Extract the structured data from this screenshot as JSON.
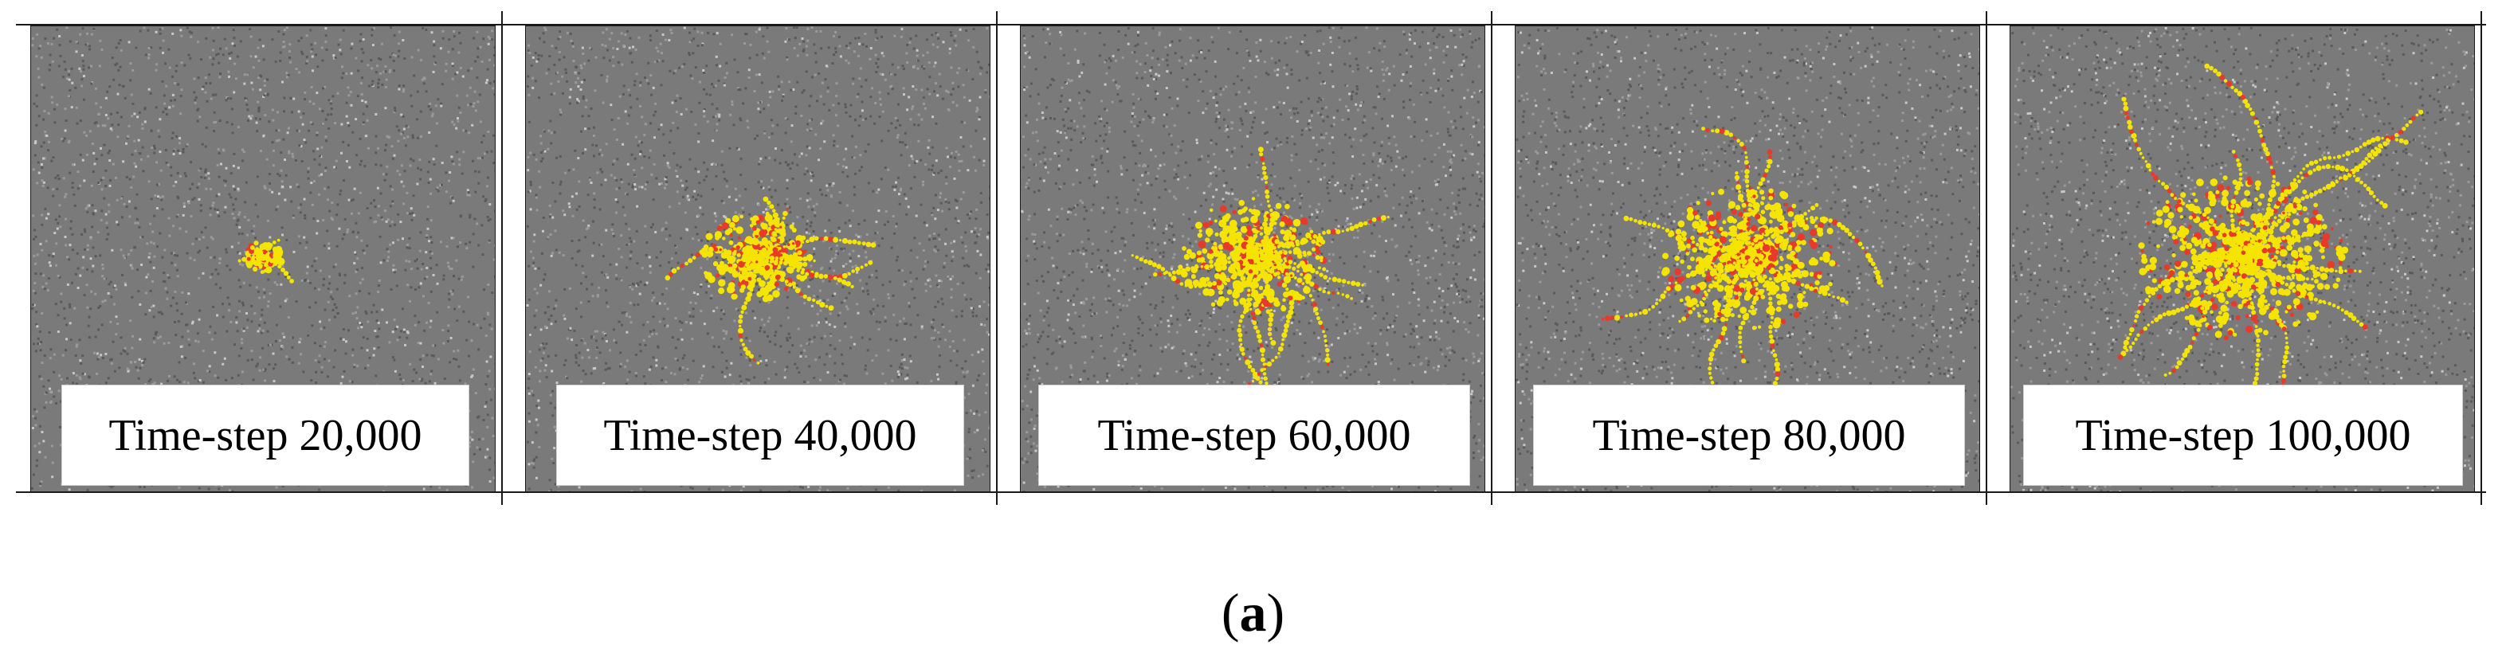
{
  "figure": {
    "label_open": "(",
    "label_letter": "a",
    "label_close": ")"
  },
  "panels": [
    {
      "caption": "Time-step 20,000",
      "crack_extent": 0.08
    },
    {
      "caption": "Time-step 40,000",
      "crack_extent": 0.45
    },
    {
      "caption": "Time-step 60,000",
      "crack_extent": 0.62
    },
    {
      "caption": "Time-step 80,000",
      "crack_extent": 0.78
    },
    {
      "caption": "Time-step 100,000",
      "crack_extent": 0.92
    }
  ],
  "colors": {
    "background_particles": "#7a7a7a",
    "crack_primary": "#f5e400",
    "crack_secondary": "#e8392a",
    "frame": "#1a1a1a"
  }
}
